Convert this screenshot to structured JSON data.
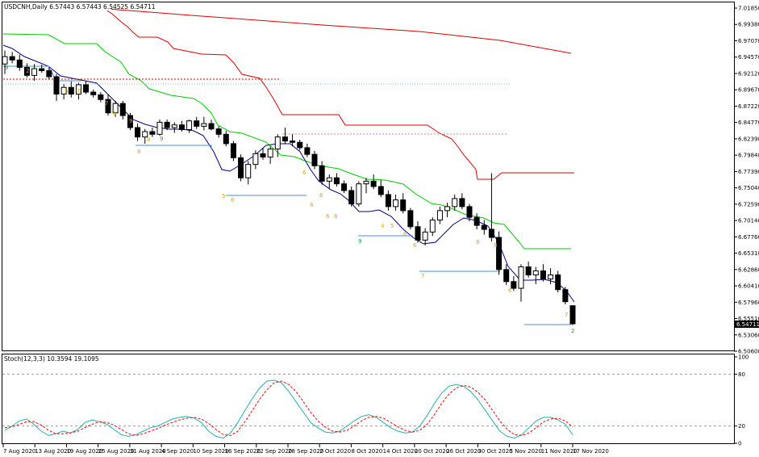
{
  "header": {
    "symbol_text": "USDCNH,Daily  6.57443 6.57443 6.54525 6.54711",
    "stoch_text": "Stoch(12,3,3) 10.3594 19.1095"
  },
  "price_axis": {
    "labels": [
      "7.01850",
      "6.99380",
      "6.97070",
      "6.94570",
      "6.92120",
      "6.89670",
      "6.87220",
      "6.84770",
      "6.82390",
      "6.79840",
      "6.77390",
      "6.75040",
      "6.72590",
      "6.70140",
      "6.67760",
      "6.65310",
      "6.62860",
      "6.60410",
      "6.57960",
      "6.55510",
      "6.53060",
      "6.50600"
    ],
    "current_price": "6.54711"
  },
  "stoch_axis": {
    "labels": [
      "100",
      "80",
      "20",
      "0"
    ]
  },
  "date_axis": {
    "labels": [
      "7 Aug 2020",
      "13 Aug 2020",
      "19 Aug 2020",
      "25 Aug 2020",
      "31 Aug 2020",
      "4 Sep 2020",
      "10 Sep 2020",
      "16 Sep 2020",
      "22 Sep 2020",
      "28 Sep 2020",
      "2 Oct 2020",
      "8 Oct 2020",
      "14 Oct 2020",
      "20 Oct 2020",
      "26 Oct 2020",
      "30 Oct 2020",
      "5 Nov 2020",
      "11 Nov 2020",
      "17 Nov 2020"
    ]
  },
  "colors": {
    "bull_body": "#ffffff",
    "bear_body": "#000000",
    "red_line": "#e00000",
    "green_line": "#00cc00",
    "blue_ma": "#000080",
    "support_line": "#4a90d9",
    "stoch_main": "#20b2aa",
    "stoch_signal": "#ff0000",
    "td_yellow": "#d4b000",
    "td_green": "#00b050"
  },
  "chart_data": [
    {
      "type": "candlestick",
      "title": "USDCNH,Daily  6.57443 6.57443 6.54525 6.54711",
      "ylim": [
        6.506,
        7.0185
      ],
      "candles": [
        [
          6.935,
          6.955,
          6.92,
          6.946
        ],
        [
          6.946,
          6.953,
          6.936,
          6.941
        ],
        [
          6.941,
          6.949,
          6.925,
          6.93
        ],
        [
          6.93,
          6.936,
          6.915,
          6.918
        ],
        [
          6.918,
          6.935,
          6.91,
          6.928
        ],
        [
          6.928,
          6.934,
          6.922,
          6.925
        ],
        [
          6.925,
          6.93,
          6.912,
          6.916
        ],
        [
          6.916,
          6.92,
          6.88,
          6.89
        ],
        [
          6.89,
          6.905,
          6.882,
          6.9
        ],
        [
          6.9,
          6.909,
          6.885,
          6.89
        ],
        [
          6.89,
          6.907,
          6.882,
          6.904
        ],
        [
          6.904,
          6.91,
          6.89,
          6.893
        ],
        [
          6.893,
          6.897,
          6.885,
          6.889
        ],
        [
          6.889,
          6.893,
          6.878,
          6.882
        ],
        [
          6.882,
          6.89,
          6.858,
          6.862
        ],
        [
          6.862,
          6.88,
          6.856,
          6.876
        ],
        [
          6.876,
          6.88,
          6.852,
          6.858
        ],
        [
          6.858,
          6.862,
          6.836,
          6.84
        ],
        [
          6.84,
          6.846,
          6.82,
          6.826
        ],
        [
          6.826,
          6.838,
          6.816,
          6.834
        ],
        [
          6.834,
          6.84,
          6.826,
          6.83
        ],
        [
          6.83,
          6.852,
          6.828,
          6.848
        ],
        [
          6.848,
          6.852,
          6.836,
          6.84
        ],
        [
          6.84,
          6.848,
          6.832,
          6.844
        ],
        [
          6.844,
          6.85,
          6.834,
          6.837
        ],
        [
          6.837,
          6.852,
          6.832,
          6.85
        ],
        [
          6.85,
          6.856,
          6.838,
          6.842
        ],
        [
          6.842,
          6.856,
          6.836,
          6.846
        ],
        [
          6.846,
          6.852,
          6.836,
          6.838
        ],
        [
          6.838,
          6.842,
          6.825,
          6.83
        ],
        [
          6.83,
          6.835,
          6.812,
          6.816
        ],
        [
          6.816,
          6.82,
          6.79,
          6.795
        ],
        [
          6.795,
          6.8,
          6.76,
          6.765
        ],
        [
          6.765,
          6.79,
          6.755,
          6.785
        ],
        [
          6.785,
          6.806,
          6.778,
          6.801
        ],
        [
          6.801,
          6.81,
          6.792,
          6.796
        ],
        [
          6.796,
          6.812,
          6.786,
          6.808
        ],
        [
          6.808,
          6.83,
          6.796,
          6.826
        ],
        [
          6.826,
          6.84,
          6.816,
          6.82
        ],
        [
          6.82,
          6.83,
          6.812,
          6.818
        ],
        [
          6.818,
          6.822,
          6.806,
          6.81
        ],
        [
          6.81,
          6.816,
          6.796,
          6.8
        ],
        [
          6.8,
          6.805,
          6.778,
          6.783
        ],
        [
          6.783,
          6.79,
          6.755,
          6.76
        ],
        [
          6.76,
          6.77,
          6.748,
          6.765
        ],
        [
          6.765,
          6.772,
          6.752,
          6.756
        ],
        [
          6.756,
          6.761,
          6.742,
          6.746
        ],
        [
          6.746,
          6.752,
          6.722,
          6.726
        ],
        [
          6.726,
          6.76,
          6.722,
          6.756
        ],
        [
          6.756,
          6.765,
          6.742,
          6.76
        ],
        [
          6.76,
          6.77,
          6.748,
          6.752
        ],
        [
          6.752,
          6.762,
          6.736,
          6.74
        ],
        [
          6.74,
          6.746,
          6.716,
          6.722
        ],
        [
          6.722,
          6.74,
          6.716,
          6.732
        ],
        [
          6.732,
          6.742,
          6.712,
          6.716
        ],
        [
          6.716,
          6.72,
          6.688,
          6.692
        ],
        [
          6.692,
          6.7,
          6.668,
          6.672
        ],
        [
          6.672,
          6.69,
          6.664,
          6.684
        ],
        [
          6.684,
          6.706,
          6.678,
          6.702
        ],
        [
          6.702,
          6.722,
          6.696,
          6.716
        ],
        [
          6.716,
          6.728,
          6.706,
          6.722
        ],
        [
          6.722,
          6.74,
          6.716,
          6.734
        ],
        [
          6.734,
          6.742,
          6.718,
          6.722
        ],
        [
          6.722,
          6.726,
          6.7,
          6.706
        ],
        [
          6.706,
          6.712,
          6.688,
          6.694
        ],
        [
          6.694,
          6.702,
          6.68,
          6.688
        ],
        [
          6.688,
          6.772,
          6.67,
          6.676
        ],
        [
          6.676,
          6.685,
          6.62,
          6.628
        ],
        [
          6.628,
          6.636,
          6.605,
          6.61
        ],
        [
          6.61,
          6.618,
          6.596,
          6.6
        ],
        [
          6.6,
          6.636,
          6.58,
          6.632
        ],
        [
          6.632,
          6.64,
          6.616,
          6.62
        ],
        [
          6.62,
          6.632,
          6.606,
          6.626
        ],
        [
          6.626,
          6.636,
          6.61,
          6.614
        ],
        [
          6.614,
          6.63,
          6.606,
          6.62
        ],
        [
          6.62,
          6.626,
          6.594,
          6.598
        ],
        [
          6.598,
          6.602,
          6.576,
          6.58
        ],
        [
          6.574,
          6.574,
          6.545,
          6.547
        ]
      ]
    },
    {
      "type": "line",
      "title": "Stoch(12,3,3) 10.3594 19.1095",
      "ylim": [
        0,
        100
      ],
      "series": [
        {
          "values": [
            15,
            20,
            26,
            28,
            22,
            14,
            9,
            11,
            14,
            12,
            16,
            24,
            27,
            25,
            22,
            16,
            10,
            8,
            10,
            14,
            18,
            20,
            24,
            28,
            30,
            31,
            29,
            24,
            14,
            8,
            6,
            12,
            24,
            38,
            52,
            64,
            72,
            73,
            70,
            60,
            48,
            36,
            24,
            18,
            13,
            12,
            14,
            20,
            26,
            31,
            33,
            30,
            24,
            18,
            14,
            12,
            13,
            20,
            32,
            46,
            58,
            66,
            68,
            66,
            60,
            50,
            38,
            26,
            14,
            8,
            6,
            10,
            18,
            26,
            30,
            30,
            27,
            22,
            10
          ]
        },
        {
          "values": [
            18,
            19,
            22,
            25,
            25,
            21,
            15,
            11,
            11,
            12,
            14,
            18,
            22,
            25,
            24,
            21,
            16,
            11,
            9,
            11,
            14,
            17,
            21,
            24,
            27,
            29,
            30,
            28,
            23,
            16,
            10,
            9,
            14,
            25,
            38,
            51,
            62,
            70,
            72,
            68,
            60,
            48,
            36,
            26,
            19,
            14,
            13,
            15,
            20,
            26,
            30,
            31,
            29,
            24,
            19,
            15,
            13,
            15,
            22,
            33,
            46,
            57,
            64,
            67,
            65,
            59,
            50,
            38,
            26,
            16,
            10,
            9,
            12,
            18,
            25,
            28,
            29,
            26,
            19
          ]
        }
      ]
    }
  ]
}
